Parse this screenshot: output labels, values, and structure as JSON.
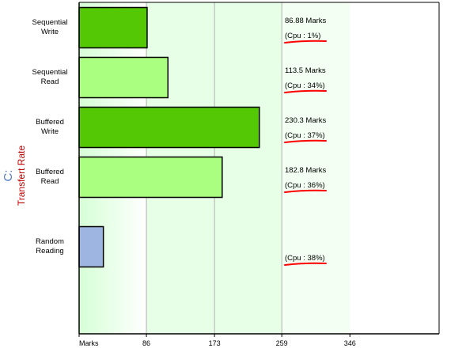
{
  "chart_data": {
    "type": "bar",
    "orientation": "horizontal",
    "drive_label": "C:",
    "ylabel": "Transfert Rate",
    "x_tick_labels": [
      "Marks",
      "86",
      "173",
      "259",
      "346"
    ],
    "x_ticks": [
      0,
      86,
      173,
      259,
      346
    ],
    "xlim": [
      0,
      460
    ],
    "grid": true,
    "categories": [
      {
        "line1": "Sequential",
        "line2": "Write"
      },
      {
        "line1": "Sequential",
        "line2": "Read"
      },
      {
        "line1": "Buffered",
        "line2": "Write"
      },
      {
        "line1": "Buffered",
        "line2": "Read"
      },
      {
        "line1": "Random",
        "line2": "Reading"
      }
    ],
    "values": [
      86.88,
      113.5,
      230.3,
      182.8,
      31
    ],
    "value_labels": [
      "86.88 Marks",
      "113.5 Marks",
      "230.3 Marks",
      "182.8 Marks",
      ""
    ],
    "cpu_labels": [
      "(Cpu : 1%)",
      "(Cpu : 34%)",
      "(Cpu : 37%)",
      "(Cpu : 36%)",
      "(Cpu : 38%)"
    ],
    "colors": {
      "dark_green": "#55c805",
      "light_green": "#aaff80",
      "blue": "#9db5e0",
      "band_light": "#e6ffe6",
      "band_lighter": "#f2fff2",
      "underline": "#ff0000"
    },
    "bar_colors": [
      "dark_green",
      "light_green",
      "dark_green",
      "light_green",
      "blue"
    ]
  }
}
